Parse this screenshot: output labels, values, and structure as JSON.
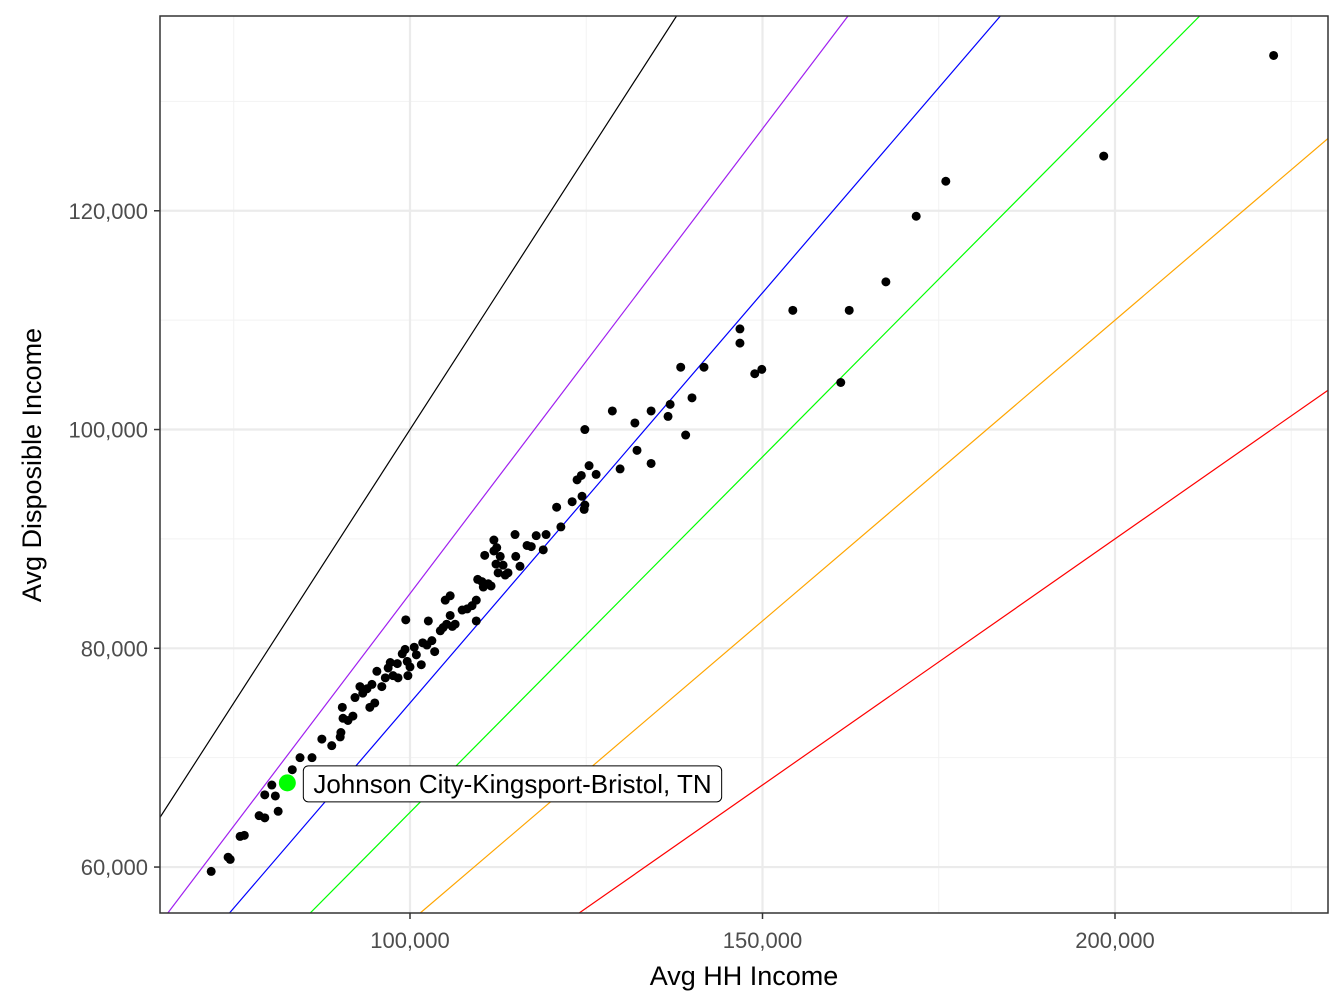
{
  "chart_data": {
    "type": "scatter",
    "xlabel": "Avg HH Income",
    "ylabel": "Avg Disposible Income",
    "xlim": [
      64539,
      230213
    ],
    "ylim": [
      55799,
      137808
    ],
    "grid": true,
    "x_ticks": [
      100000,
      150000,
      200000
    ],
    "x_tick_labels": [
      "100,000",
      "150,000",
      "200,000"
    ],
    "x_minor": [
      75000,
      125000,
      175000,
      225000
    ],
    "y_ticks": [
      60000,
      80000,
      100000,
      120000
    ],
    "y_tick_labels": [
      "60,000",
      "80,000",
      "100,000",
      "120,000"
    ],
    "y_minor": [
      70000,
      90000,
      110000,
      130000
    ],
    "reference_lines": [
      {
        "slope": 1.0,
        "color": "#000000"
      },
      {
        "slope": 0.85,
        "color": "#a020f0"
      },
      {
        "slope": 0.75,
        "color": "#0000ff"
      },
      {
        "slope": 0.65,
        "color": "#00ff00"
      },
      {
        "slope": 0.55,
        "color": "#ffa500"
      },
      {
        "slope": 0.45,
        "color": "#ff0000"
      }
    ],
    "point_color": "#000000",
    "points": [
      [
        71800,
        59600
      ],
      [
        74200,
        60900
      ],
      [
        74500,
        60700
      ],
      [
        75900,
        62800
      ],
      [
        76500,
        62900
      ],
      [
        78600,
        64700
      ],
      [
        79400,
        64500
      ],
      [
        79400,
        66600
      ],
      [
        80400,
        67500
      ],
      [
        80900,
        66500
      ],
      [
        81300,
        65100
      ],
      [
        83300,
        68900
      ],
      [
        84400,
        70000
      ],
      [
        86100,
        70000
      ],
      [
        87500,
        71700
      ],
      [
        88900,
        71100
      ],
      [
        90100,
        71900
      ],
      [
        90200,
        72300
      ],
      [
        91200,
        73400
      ],
      [
        91900,
        73800
      ],
      [
        90500,
        73600
      ],
      [
        90400,
        74600
      ],
      [
        92200,
        75500
      ],
      [
        92900,
        76500
      ],
      [
        93300,
        75900
      ],
      [
        93900,
        76300
      ],
      [
        94300,
        74600
      ],
      [
        95000,
        75000
      ],
      [
        94600,
        76700
      ],
      [
        95300,
        77900
      ],
      [
        96000,
        76500
      ],
      [
        96500,
        77300
      ],
      [
        96900,
        78200
      ],
      [
        97200,
        78700
      ],
      [
        97600,
        77500
      ],
      [
        98300,
        77300
      ],
      [
        98200,
        78600
      ],
      [
        98900,
        79500
      ],
      [
        99300,
        79900
      ],
      [
        99600,
        78800
      ],
      [
        99400,
        82600
      ],
      [
        99700,
        77500
      ],
      [
        100000,
        78300
      ],
      [
        100600,
        80100
      ],
      [
        100900,
        79400
      ],
      [
        101600,
        78500
      ],
      [
        101800,
        80500
      ],
      [
        102400,
        80300
      ],
      [
        102600,
        82500
      ],
      [
        103100,
        80700
      ],
      [
        103500,
        79700
      ],
      [
        104300,
        81600
      ],
      [
        104700,
        81900
      ],
      [
        105000,
        84400
      ],
      [
        105700,
        84800
      ],
      [
        105200,
        82200
      ],
      [
        105700,
        83000
      ],
      [
        106000,
        82000
      ],
      [
        106400,
        82200
      ],
      [
        107400,
        83500
      ],
      [
        108100,
        83600
      ],
      [
        108800,
        83900
      ],
      [
        109400,
        84400
      ],
      [
        109400,
        82500
      ],
      [
        109600,
        86300
      ],
      [
        110200,
        86100
      ],
      [
        110600,
        88500
      ],
      [
        110400,
        85600
      ],
      [
        111100,
        85900
      ],
      [
        111500,
        85700
      ],
      [
        111900,
        89900
      ],
      [
        111900,
        88900
      ],
      [
        112300,
        89200
      ],
      [
        112800,
        88400
      ],
      [
        112200,
        87700
      ],
      [
        112500,
        86900
      ],
      [
        113200,
        87600
      ],
      [
        113500,
        86700
      ],
      [
        113900,
        86900
      ],
      [
        114900,
        90400
      ],
      [
        115000,
        88400
      ],
      [
        115600,
        87500
      ],
      [
        116600,
        89400
      ],
      [
        117200,
        89300
      ],
      [
        117900,
        90300
      ],
      [
        118900,
        89000
      ],
      [
        119300,
        90400
      ],
      [
        120800,
        92900
      ],
      [
        121400,
        91100
      ],
      [
        123000,
        93400
      ],
      [
        123700,
        95400
      ],
      [
        124300,
        95800
      ],
      [
        124400,
        93900
      ],
      [
        124800,
        93100
      ],
      [
        124700,
        92700
      ],
      [
        124800,
        100000
      ],
      [
        125400,
        96700
      ],
      [
        126400,
        95900
      ],
      [
        128700,
        101700
      ],
      [
        129800,
        96400
      ],
      [
        131900,
        100600
      ],
      [
        132200,
        98100
      ],
      [
        134200,
        96900
      ],
      [
        134200,
        101700
      ],
      [
        136600,
        101200
      ],
      [
        136900,
        102300
      ],
      [
        139100,
        99500
      ],
      [
        140000,
        102900
      ],
      [
        138400,
        105700
      ],
      [
        141700,
        105700
      ],
      [
        146800,
        109200
      ],
      [
        146800,
        107900
      ],
      [
        148900,
        105100
      ],
      [
        149900,
        105500
      ],
      [
        154300,
        110900
      ],
      [
        161100,
        104300
      ],
      [
        162300,
        110900
      ],
      [
        167500,
        113500
      ],
      [
        171800,
        119500
      ],
      [
        176000,
        122700
      ],
      [
        198400,
        125000
      ],
      [
        222500,
        134200
      ]
    ],
    "highlight": {
      "x": 82600,
      "y": 67700,
      "color": "#00ff00",
      "label": "Johnson City-Kingsport-Bristol, TN"
    }
  }
}
